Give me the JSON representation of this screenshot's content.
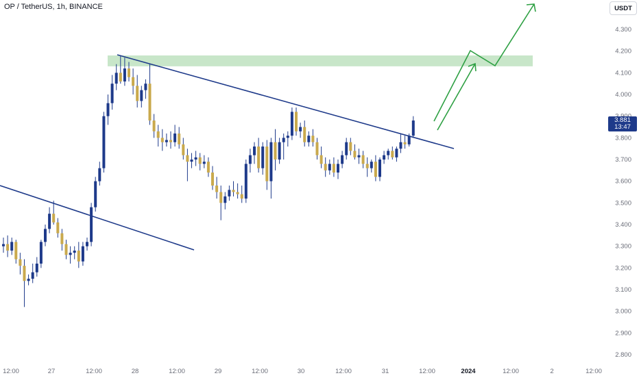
{
  "header": {
    "title": "OP / TetherUS, 1h, BINANCE",
    "unit": "USDT"
  },
  "last_price": {
    "value": "3.881",
    "countdown": "13:47"
  },
  "chart_data": {
    "type": "candlestick",
    "title": "OP / TetherUS, 1h, BINANCE",
    "ylabel": "USDT",
    "ylim": [
      2.75,
      4.4
    ],
    "y_ticks": [
      "4.300",
      "4.200",
      "4.100",
      "4.000",
      "3.900",
      "3.800",
      "3.700",
      "3.600",
      "3.500",
      "3.400",
      "3.300",
      "3.200",
      "3.100",
      "3.000",
      "2.900",
      "2.800"
    ],
    "x_ticks": [
      "12:00",
      "27",
      "12:00",
      "28",
      "12:00",
      "29",
      "12:00",
      "30",
      "12:00",
      "31",
      "12:00",
      "2024",
      "12:00",
      "2",
      "12:00"
    ],
    "bold_x_ticks": [
      "2024"
    ],
    "colors": {
      "up": "#1e3a8a",
      "down": "#c9a94d",
      "trendline": "#1e3a8a",
      "arrow": "#2ea043",
      "zone": "#c8e6c9",
      "tag": "#1e3a8a"
    },
    "resistance_zone": {
      "low": 4.13,
      "high": 4.18
    },
    "candles": [
      [
        3.3,
        3.34,
        3.27,
        3.31
      ],
      [
        3.31,
        3.35,
        3.25,
        3.28
      ],
      [
        3.28,
        3.34,
        3.26,
        3.32
      ],
      [
        3.32,
        3.33,
        3.22,
        3.24
      ],
      [
        3.24,
        3.27,
        3.17,
        3.21
      ],
      [
        3.21,
        3.24,
        3.02,
        3.14
      ],
      [
        3.14,
        3.17,
        3.12,
        3.15
      ],
      [
        3.15,
        3.22,
        3.13,
        3.18
      ],
      [
        3.18,
        3.25,
        3.16,
        3.22
      ],
      [
        3.22,
        3.33,
        3.2,
        3.32
      ],
      [
        3.32,
        3.4,
        3.3,
        3.38
      ],
      [
        3.38,
        3.48,
        3.36,
        3.45
      ],
      [
        3.45,
        3.51,
        3.4,
        3.41
      ],
      [
        3.41,
        3.43,
        3.34,
        3.36
      ],
      [
        3.36,
        3.38,
        3.28,
        3.31
      ],
      [
        3.31,
        3.33,
        3.24,
        3.26
      ],
      [
        3.26,
        3.3,
        3.22,
        3.27
      ],
      [
        3.27,
        3.3,
        3.24,
        3.28
      ],
      [
        3.28,
        3.32,
        3.2,
        3.23
      ],
      [
        3.23,
        3.32,
        3.21,
        3.3
      ],
      [
        3.3,
        3.34,
        3.28,
        3.32
      ],
      [
        3.32,
        3.5,
        3.3,
        3.48
      ],
      [
        3.48,
        3.62,
        3.46,
        3.6
      ],
      [
        3.6,
        3.69,
        3.58,
        3.66
      ],
      [
        3.66,
        3.92,
        3.64,
        3.9
      ],
      [
        3.9,
        4.0,
        3.86,
        3.96
      ],
      [
        3.96,
        4.09,
        3.93,
        4.05
      ],
      [
        4.05,
        4.14,
        4.02,
        4.1
      ],
      [
        4.1,
        4.18,
        4.05,
        4.06
      ],
      [
        4.06,
        4.17,
        4.04,
        4.12
      ],
      [
        4.12,
        4.15,
        4.06,
        4.08
      ],
      [
        4.08,
        4.12,
        4.0,
        4.04
      ],
      [
        4.04,
        4.09,
        3.94,
        3.97
      ],
      [
        3.97,
        4.04,
        3.94,
        4.02
      ],
      [
        4.02,
        4.07,
        3.98,
        4.05
      ],
      [
        4.05,
        4.14,
        3.86,
        3.88
      ],
      [
        3.88,
        3.91,
        3.8,
        3.83
      ],
      [
        3.83,
        3.86,
        3.76,
        3.8
      ],
      [
        3.8,
        3.84,
        3.74,
        3.78
      ],
      [
        3.78,
        3.82,
        3.76,
        3.79
      ],
      [
        3.79,
        3.83,
        3.75,
        3.78
      ],
      [
        3.78,
        3.86,
        3.76,
        3.82
      ],
      [
        3.82,
        3.85,
        3.75,
        3.77
      ],
      [
        3.77,
        3.8,
        3.7,
        3.72
      ],
      [
        3.72,
        3.75,
        3.6,
        3.69
      ],
      [
        3.69,
        3.73,
        3.66,
        3.7
      ],
      [
        3.7,
        3.74,
        3.67,
        3.71
      ],
      [
        3.71,
        3.73,
        3.65,
        3.68
      ],
      [
        3.68,
        3.72,
        3.66,
        3.69
      ],
      [
        3.69,
        3.71,
        3.62,
        3.64
      ],
      [
        3.64,
        3.67,
        3.56,
        3.58
      ],
      [
        3.58,
        3.62,
        3.52,
        3.55
      ],
      [
        3.55,
        3.58,
        3.42,
        3.5
      ],
      [
        3.5,
        3.55,
        3.47,
        3.53
      ],
      [
        3.53,
        3.58,
        3.51,
        3.56
      ],
      [
        3.56,
        3.6,
        3.53,
        3.55
      ],
      [
        3.55,
        3.59,
        3.52,
        3.54
      ],
      [
        3.54,
        3.58,
        3.5,
        3.52
      ],
      [
        3.52,
        3.7,
        3.5,
        3.68
      ],
      [
        3.68,
        3.75,
        3.64,
        3.72
      ],
      [
        3.72,
        3.78,
        3.68,
        3.76
      ],
      [
        3.76,
        3.8,
        3.64,
        3.66
      ],
      [
        3.66,
        3.78,
        3.63,
        3.76
      ],
      [
        3.76,
        3.79,
        3.56,
        3.6
      ],
      [
        3.6,
        3.8,
        3.52,
        3.78
      ],
      [
        3.78,
        3.84,
        3.65,
        3.7
      ],
      [
        3.7,
        3.8,
        3.68,
        3.78
      ],
      [
        3.78,
        3.82,
        3.7,
        3.8
      ],
      [
        3.8,
        3.83,
        3.76,
        3.81
      ],
      [
        3.81,
        3.94,
        3.79,
        3.92
      ],
      [
        3.92,
        3.94,
        3.81,
        3.83
      ],
      [
        3.83,
        3.87,
        3.8,
        3.85
      ],
      [
        3.85,
        3.88,
        3.76,
        3.78
      ],
      [
        3.78,
        3.83,
        3.76,
        3.81
      ],
      [
        3.81,
        3.84,
        3.76,
        3.78
      ],
      [
        3.78,
        3.8,
        3.7,
        3.72
      ],
      [
        3.72,
        3.76,
        3.66,
        3.68
      ],
      [
        3.68,
        3.71,
        3.62,
        3.65
      ],
      [
        3.65,
        3.7,
        3.63,
        3.68
      ],
      [
        3.68,
        3.71,
        3.62,
        3.64
      ],
      [
        3.64,
        3.7,
        3.61,
        3.68
      ],
      [
        3.68,
        3.74,
        3.66,
        3.72
      ],
      [
        3.72,
        3.8,
        3.7,
        3.78
      ],
      [
        3.78,
        3.8,
        3.72,
        3.74
      ],
      [
        3.74,
        3.77,
        3.7,
        3.71
      ],
      [
        3.71,
        3.75,
        3.68,
        3.72
      ],
      [
        3.72,
        3.74,
        3.66,
        3.68
      ],
      [
        3.68,
        3.71,
        3.62,
        3.66
      ],
      [
        3.66,
        3.7,
        3.64,
        3.69
      ],
      [
        3.69,
        3.72,
        3.6,
        3.62
      ],
      [
        3.62,
        3.71,
        3.6,
        3.7
      ],
      [
        3.7,
        3.74,
        3.68,
        3.72
      ],
      [
        3.72,
        3.75,
        3.7,
        3.74
      ],
      [
        3.74,
        3.76,
        3.7,
        3.71
      ],
      [
        3.71,
        3.76,
        3.69,
        3.75
      ],
      [
        3.75,
        3.82,
        3.73,
        3.78
      ],
      [
        3.78,
        3.81,
        3.75,
        3.77
      ],
      [
        3.77,
        3.82,
        3.76,
        3.81
      ],
      [
        3.81,
        3.9,
        3.8,
        3.88
      ]
    ]
  }
}
